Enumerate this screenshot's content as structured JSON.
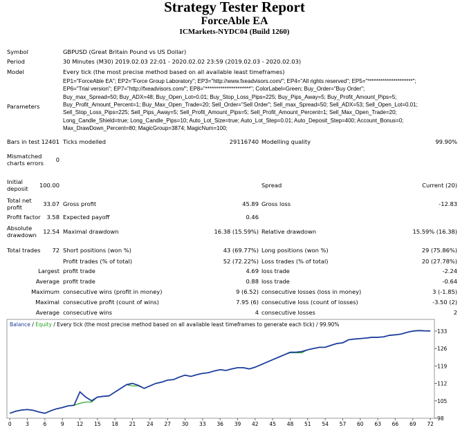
{
  "header": {
    "title": "Strategy Tester Report",
    "ea_name": "ForceAble EA",
    "server": "ICMarkets-NYDC04 (Build 1260)"
  },
  "info": [
    {
      "label": "Symbol",
      "value": "GBPUSD (Great Britain Pound vs US Dollar)"
    },
    {
      "label": "Period",
      "value": "30 Minutes (M30) 2019.02.03 22:01 - 2020.02.02 23:59 (2019.02.03 - 2020.02.03)"
    },
    {
      "label": "Model",
      "value": "Every tick (the most precise method based on all available least timeframes)"
    }
  ],
  "parameters": {
    "label": "Parameters",
    "lines": [
      "EP1=\"ForceAble EA\"; EP2=\"Force Group Laboratory\"; EP3=\"http://www.fxeadvisors.com/\"; EP4=\"All rights reserved\"; EP5=\"*********************\";",
      "EP6=\"Trial version\"; EP7=\"http://fxeadvisors.com/\"; EP8=\"*********************\"; ColorLabel=Green; Buy_Order=\"Buy Order\";",
      "Buy_max_Spread=50; Buy_ADX=48; Buy_Open_Lot=0.01; Buy_Stop_Loss_Pips=225; Buy_Pips_Away=5; Buy_Profit_Amount_Pips=5;",
      "Buy_Profit_Amount_Percent=1; Buy_Max_Open_Trade=20; Sell_Order=\"Sell Order\"; Sell_max_Spread=50; Sell_ADX=53; Sell_Open_Lot=0.01;",
      "Sell_Stop_Loss_Pips=225; Sell_Pips_Away=5; Sell_Profit_Amount_Pips=5; Sell_Profit_Amount_Percent=1; Sell_Max_Open_Trade=20;",
      "Long_Candle_Shield=true; Long_Candle_Pips=10; Auto_Lot_Size=true; Auto_Lot_Step=0.01; Auto_Deposit_Step=400; Account_Bonus=0;",
      "Max_DrawDown_Percent=80; MagicGroup=3874; MagicNum=100;"
    ]
  },
  "stats": {
    "rows": [
      [
        "Bars in test",
        "12401",
        "Ticks modelled",
        "29116740",
        "Modelling quality",
        "99.90%"
      ],
      [
        "Mismatched charts errors",
        "0",
        null,
        null,
        null,
        null
      ],
      [
        "Initial deposit",
        "100.00",
        null,
        null,
        "Spread",
        "Current (20)"
      ],
      [
        "Total net profit",
        "33.07",
        "Gross profit",
        "45.89",
        "Gross loss",
        "-12.83"
      ],
      [
        "Profit factor",
        "3.58",
        "Expected payoff",
        "0.46",
        null,
        null
      ],
      [
        "Absolute drawdown",
        "12.54",
        "Maximal drawdown",
        "16.38 (15.59%)",
        "Relative drawdown",
        "15.59% (16.38)"
      ],
      [
        "Total trades",
        "72",
        "Short positions (won %)",
        "43 (69.77%)",
        "Long positions (won %)",
        "29 (75.86%)"
      ],
      [
        null,
        null,
        "Profit trades (% of total)",
        "52 (72.22%)",
        "Loss trades (% of total)",
        "20 (27.78%)"
      ],
      [
        null,
        "Largest",
        "profit trade",
        "4.69",
        "loss trade",
        "-2.24"
      ],
      [
        null,
        "Average",
        "profit trade",
        "0.88",
        "loss trade",
        "-0.64"
      ],
      [
        null,
        "Maximum",
        "consecutive wins (profit in money)",
        "9 (6.52)",
        "consecutive losses (loss in money)",
        "3 (-1.85)"
      ],
      [
        null,
        "Maximal",
        "consecutive profit (count of wins)",
        "7.95 (6)",
        "consecutive loss (count of losses)",
        "-3.50 (2)"
      ],
      [
        null,
        "Average",
        "consecutive wins",
        "4",
        "consecutive losses",
        "2"
      ]
    ]
  },
  "chart_data": {
    "type": "line",
    "separator": "/",
    "subtitle": "Every tick (the most precise method based on all available least timeframes to generate each tick)",
    "modelling_quality": "99.90%",
    "x": [
      0,
      1,
      2,
      3,
      4,
      5,
      6,
      7,
      8,
      9,
      10,
      11,
      12,
      13,
      14,
      15,
      16,
      17,
      18,
      19,
      20,
      21,
      22,
      23,
      24,
      25,
      26,
      27,
      28,
      29,
      30,
      31,
      32,
      33,
      34,
      35,
      36,
      37,
      38,
      39,
      40,
      41,
      42,
      43,
      44,
      45,
      46,
      47,
      48,
      49,
      50,
      51,
      52,
      53,
      54,
      55,
      56,
      57,
      58,
      59,
      60,
      61,
      62,
      63,
      64,
      65,
      66,
      67,
      68,
      69,
      70,
      71,
      72
    ],
    "series": [
      {
        "name": "Equity",
        "color": "#22a022",
        "values": [
          100,
          100.8,
          101.3,
          101.5,
          101.2,
          100.5,
          100,
          101,
          101.8,
          102.3,
          103,
          103.2,
          104,
          104.5,
          104.5,
          106.5,
          106.8,
          107,
          108.5,
          110,
          111.5,
          111,
          111,
          110,
          111,
          112,
          112.5,
          113.3,
          113.5,
          114.5,
          115.3,
          114.8,
          115.5,
          116,
          116.3,
          117,
          117.5,
          117.2,
          117.8,
          118.3,
          118.3,
          117.8,
          118.5,
          119.5,
          120.5,
          121.5,
          122.5,
          123.5,
          124.3,
          124.3,
          124.3,
          125.5,
          126,
          126.5,
          126.5,
          127.3,
          128,
          128.3,
          129.5,
          129.8,
          130,
          130.2,
          130.5,
          130.5,
          130.7,
          131.3,
          131.5,
          131.8,
          132.5,
          133,
          133.2,
          133.1,
          133.07
        ]
      },
      {
        "name": "Balance",
        "color": "#1c3d9c",
        "values": [
          100,
          100.8,
          101.3,
          101.5,
          101.2,
          100.5,
          100,
          101,
          101.8,
          102.3,
          103,
          103.2,
          108.6,
          106.5,
          105,
          106.5,
          106.8,
          107,
          108.5,
          110,
          111.5,
          112,
          111.2,
          110,
          111,
          112,
          112.5,
          113.3,
          113.5,
          114.5,
          115.3,
          114.8,
          115.5,
          116,
          116.3,
          117,
          117.5,
          117.2,
          117.8,
          118.3,
          118.3,
          117.8,
          118.5,
          119.5,
          120.5,
          121.5,
          122.5,
          123.5,
          124.5,
          124.5,
          124.8,
          125.5,
          126,
          126.5,
          126.5,
          127.3,
          128,
          128.3,
          129.5,
          129.8,
          130,
          130.2,
          130.5,
          130.5,
          130.7,
          131.3,
          131.5,
          131.8,
          132.5,
          133,
          133.2,
          133.1,
          133.07
        ]
      }
    ],
    "xlim": [
      -0.5,
      72.7
    ],
    "ylim": [
      98,
      137.7
    ],
    "xticks": [
      0,
      3,
      6,
      9,
      12,
      15,
      18,
      21,
      24,
      27,
      30,
      33,
      36,
      39,
      42,
      45,
      48,
      51,
      54,
      57,
      60,
      63,
      66,
      69,
      72
    ],
    "yticks": [
      98,
      105,
      112,
      119,
      126,
      133
    ]
  }
}
